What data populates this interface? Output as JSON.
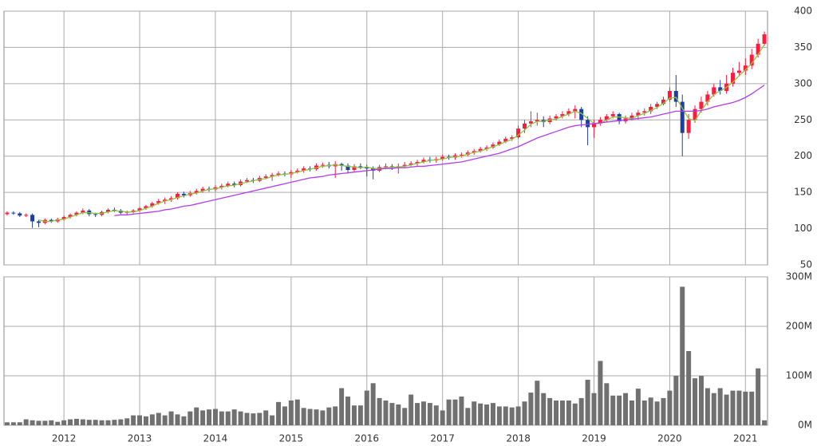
{
  "chart_data": [
    {
      "type": "candlestick",
      "up_color": "#ff1a40",
      "down_color": "#1f3f9f",
      "open": [
        120,
        122,
        121,
        118,
        119,
        110,
        108,
        112,
        110,
        113,
        116,
        119,
        122,
        125,
        120,
        119,
        123,
        126,
        125,
        122,
        123,
        125,
        128,
        131,
        135,
        138,
        140,
        142,
        148,
        146,
        149,
        152,
        155,
        154,
        157,
        159,
        162,
        160,
        165,
        167,
        166,
        170,
        172,
        174,
        176,
        175,
        178,
        180,
        183,
        182,
        187,
        188,
        186,
        189,
        187,
        181,
        186,
        185,
        183,
        180,
        185,
        186,
        184,
        186,
        188,
        190,
        192,
        195,
        194,
        196,
        199,
        198,
        201,
        202,
        205,
        207,
        210,
        212,
        216,
        220,
        224,
        226,
        238,
        245,
        248,
        250,
        247,
        252,
        255,
        258,
        262,
        265,
        250,
        240,
        245,
        250,
        255,
        258,
        248,
        252,
        256,
        260,
        262,
        268,
        272,
        278,
        290,
        275,
        232,
        250,
        265,
        275,
        285,
        295,
        290,
        300,
        315,
        318,
        325,
        340,
        355
      ],
      "high": [
        124,
        124,
        123,
        121,
        121,
        112,
        114,
        114,
        115,
        118,
        121,
        124,
        128,
        127,
        122,
        125,
        128,
        129,
        127,
        125,
        127,
        130,
        133,
        137,
        141,
        143,
        145,
        150,
        151,
        152,
        155,
        158,
        158,
        160,
        162,
        165,
        165,
        168,
        170,
        170,
        173,
        175,
        177,
        179,
        179,
        181,
        183,
        186,
        186,
        190,
        191,
        192,
        193,
        191,
        190,
        189,
        190,
        188,
        186,
        188,
        190,
        189,
        190,
        192,
        193,
        195,
        198,
        199,
        199,
        202,
        202,
        204,
        205,
        208,
        210,
        213,
        215,
        219,
        223,
        227,
        229,
        242,
        250,
        262,
        260,
        255,
        256,
        258,
        262,
        266,
        270,
        268,
        255,
        250,
        254,
        258,
        262,
        260,
        256,
        260,
        264,
        266,
        272,
        275,
        282,
        295,
        312,
        285,
        258,
        270,
        282,
        290,
        300,
        305,
        312,
        322,
        330,
        335,
        348,
        362,
        372
      ],
      "low": [
        118,
        119,
        116,
        116,
        101,
        102,
        106,
        108,
        108,
        111,
        114,
        117,
        120,
        117,
        116,
        117,
        121,
        123,
        120,
        119,
        121,
        123,
        126,
        129,
        133,
        134,
        137,
        140,
        143,
        144,
        147,
        150,
        151,
        151,
        154,
        157,
        157,
        158,
        163,
        163,
        164,
        168,
        166,
        172,
        172,
        170,
        176,
        177,
        179,
        180,
        184,
        183,
        170,
        180,
        176,
        179,
        182,
        172,
        168,
        178,
        182,
        181,
        176,
        184,
        186,
        187,
        190,
        191,
        191,
        194,
        195,
        195,
        198,
        200,
        202,
        205,
        207,
        210,
        214,
        218,
        221,
        224,
        232,
        240,
        242,
        240,
        244,
        249,
        252,
        255,
        252,
        240,
        215,
        225,
        242,
        247,
        252,
        244,
        245,
        249,
        250,
        256,
        258,
        265,
        270,
        275,
        268,
        200,
        224,
        246,
        260,
        270,
        282,
        285,
        286,
        296,
        310,
        312,
        320,
        336,
        352
      ],
      "close": [
        122,
        121,
        118,
        119,
        110,
        108,
        112,
        110,
        113,
        116,
        119,
        122,
        125,
        120,
        119,
        123,
        126,
        125,
        122,
        123,
        125,
        128,
        131,
        135,
        138,
        140,
        142,
        148,
        146,
        149,
        152,
        155,
        154,
        157,
        159,
        162,
        160,
        165,
        167,
        166,
        170,
        172,
        174,
        176,
        175,
        178,
        180,
        183,
        182,
        187,
        188,
        186,
        189,
        187,
        181,
        186,
        185,
        183,
        180,
        185,
        186,
        184,
        186,
        188,
        190,
        192,
        195,
        194,
        196,
        199,
        198,
        201,
        202,
        205,
        207,
        210,
        212,
        216,
        220,
        224,
        226,
        238,
        245,
        248,
        250,
        247,
        252,
        255,
        258,
        262,
        265,
        250,
        240,
        245,
        250,
        255,
        258,
        248,
        252,
        256,
        260,
        262,
        268,
        272,
        278,
        290,
        275,
        232,
        250,
        265,
        275,
        285,
        295,
        290,
        300,
        315,
        318,
        325,
        340,
        355,
        368
      ],
      "series": [
        {
          "color": "#8cc63f",
          "values": [
            null,
            null,
            null,
            null,
            null,
            112,
            110,
            110,
            112,
            113,
            116,
            119,
            122,
            122,
            121,
            121,
            123,
            125,
            124,
            123,
            123,
            125,
            128,
            131,
            135,
            138,
            140,
            143,
            145,
            148,
            149,
            152,
            154,
            155,
            157,
            159,
            160,
            162,
            164,
            166,
            168,
            169,
            172,
            174,
            175,
            176,
            178,
            180,
            182,
            184,
            186,
            187,
            188,
            187,
            186,
            185,
            184,
            185,
            183,
            183,
            184,
            185,
            185,
            186,
            188,
            190,
            192,
            194,
            195,
            196,
            198,
            199,
            200,
            203,
            205,
            207,
            210,
            213,
            216,
            220,
            223,
            229,
            236,
            244,
            248,
            248,
            250,
            251,
            255,
            258,
            262,
            259,
            252,
            245,
            245,
            250,
            254,
            254,
            253,
            252,
            256,
            259,
            263,
            267,
            273,
            280,
            281,
            266,
            252,
            249,
            263,
            275,
            285,
            290,
            295,
            302,
            311,
            319,
            328,
            340,
            354
          ]
        },
        {
          "color": "#b23cf0",
          "values": [
            null,
            null,
            null,
            null,
            null,
            null,
            null,
            null,
            null,
            null,
            null,
            null,
            null,
            null,
            null,
            null,
            null,
            118,
            119,
            119,
            120,
            121,
            122,
            123,
            124,
            126,
            127,
            129,
            131,
            132,
            134,
            136,
            138,
            140,
            142,
            144,
            146,
            148,
            150,
            152,
            154,
            156,
            158,
            160,
            162,
            164,
            166,
            168,
            170,
            171,
            172,
            174,
            175,
            176,
            177,
            178,
            179,
            180,
            181,
            182,
            183,
            183,
            184,
            184,
            185,
            186,
            186,
            187,
            188,
            189,
            190,
            191,
            192,
            194,
            196,
            198,
            200,
            202,
            204,
            207,
            210,
            213,
            217,
            221,
            225,
            228,
            231,
            234,
            237,
            240,
            242,
            243,
            244,
            245,
            246,
            247,
            248,
            249,
            250,
            251,
            252,
            253,
            254,
            256,
            258,
            260,
            262,
            262,
            262,
            262,
            263,
            265,
            268,
            270,
            272,
            274,
            277,
            281,
            286,
            292,
            298
          ]
        }
      ],
      "ylim": [
        50,
        400
      ],
      "yticks": [
        50,
        100,
        150,
        200,
        250,
        300,
        350,
        400
      ],
      "grid": true
    },
    {
      "type": "bar",
      "color": "#707070",
      "categories": [
        null,
        null,
        null,
        null,
        null,
        null,
        null,
        null,
        null,
        "2012",
        null,
        null,
        null,
        null,
        null,
        null,
        null,
        null,
        null,
        null,
        null,
        "2013",
        null,
        null,
        null,
        null,
        null,
        null,
        null,
        null,
        null,
        null,
        null,
        "2014",
        null,
        null,
        null,
        null,
        null,
        null,
        null,
        null,
        null,
        null,
        null,
        "2015",
        null,
        null,
        null,
        null,
        null,
        null,
        null,
        null,
        null,
        null,
        null,
        "2016",
        null,
        null,
        null,
        null,
        null,
        null,
        null,
        null,
        null,
        null,
        null,
        "2017",
        null,
        null,
        null,
        null,
        null,
        null,
        null,
        null,
        null,
        null,
        null,
        "2018",
        null,
        null,
        null,
        null,
        null,
        null,
        null,
        null,
        null,
        null,
        null,
        "2019",
        null,
        null,
        null,
        null,
        null,
        null,
        null,
        null,
        null,
        null,
        null,
        "2020",
        null,
        null,
        null,
        null,
        null,
        null,
        null,
        null,
        null,
        null,
        null,
        "2021",
        null,
        null,
        null
      ],
      "values": [
        6000000.0,
        6000000.0,
        6000000.0,
        12000000.0,
        10000000.0,
        9000000.0,
        9000000.0,
        10000000.0,
        7000000.0,
        10000000.0,
        12000000.0,
        13000000.0,
        12000000.0,
        11000000.0,
        11000000.0,
        10000000.0,
        10000000.0,
        11000000.0,
        12000000.0,
        14000000.0,
        20000000.0,
        20000000.0,
        18000000.0,
        22000000.0,
        25000000.0,
        20000000.0,
        28000000.0,
        22000000.0,
        18000000.0,
        28000000.0,
        36000000.0,
        30000000.0,
        32000000.0,
        33000000.0,
        28000000.0,
        28000000.0,
        32000000.0,
        28000000.0,
        25000000.0,
        24000000.0,
        25000000.0,
        30000000.0,
        20000000.0,
        47000000.0,
        38000000.0,
        50000000.0,
        52000000.0,
        35000000.0,
        33000000.0,
        32000000.0,
        30000000.0,
        36000000.0,
        38000000.0,
        75000000.0,
        58000000.0,
        40000000.0,
        40000000.0,
        70000000.0,
        85000000.0,
        55000000.0,
        50000000.0,
        45000000.0,
        42000000.0,
        35000000.0,
        62000000.0,
        45000000.0,
        48000000.0,
        45000000.0,
        40000000.0,
        30000000.0,
        52000000.0,
        52000000.0,
        58000000.0,
        35000000.0,
        48000000.0,
        44000000.0,
        42000000.0,
        45000000.0,
        38000000.0,
        38000000.0,
        36000000.0,
        38000000.0,
        48000000.0,
        66000000.0,
        90000000.0,
        65000000.0,
        55000000.0,
        50000000.0,
        50000000.0,
        50000000.0,
        44000000.0,
        55000000.0,
        92000000.0,
        65000000.0,
        130000000.0,
        85000000.0,
        60000000.0,
        60000000.0,
        65000000.0,
        50000000.0,
        74000000.0,
        50000000.0,
        56000000.0,
        48000000.0,
        55000000.0,
        70000000.0,
        100000000.0,
        280000000.0,
        150000000.0,
        95000000.0,
        100000000.0,
        75000000.0,
        65000000.0,
        75000000.0,
        62000000.0,
        70000000.0,
        70000000.0,
        68000000.0,
        68000000.0,
        115000000.0,
        10000000.0
      ],
      "ylim": [
        0,
        300000000
      ],
      "yticks": [
        {
          "value": 0,
          "label": "0M"
        },
        {
          "value": 100000000,
          "label": "100M"
        },
        {
          "value": 200000000,
          "label": "200M"
        },
        {
          "value": 300000000,
          "label": "300M"
        }
      ],
      "grid": true
    }
  ]
}
